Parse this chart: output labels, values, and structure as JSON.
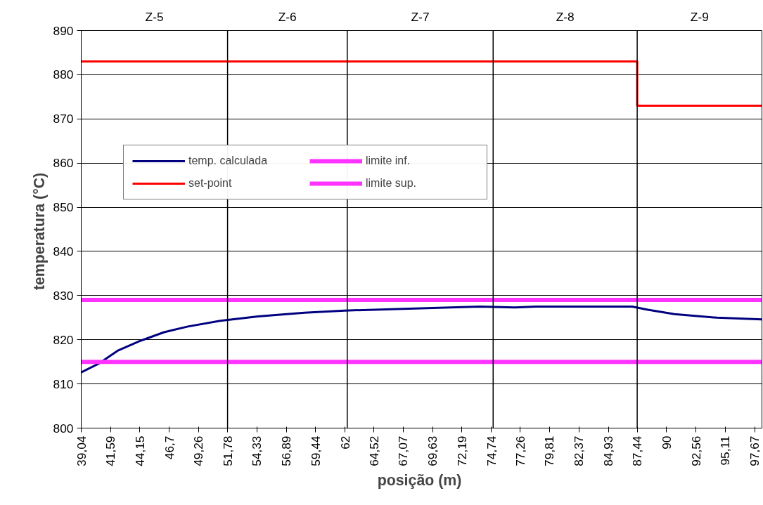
{
  "chart_data": {
    "type": "line",
    "xlabel": "posição  (m)",
    "ylabel": "temperatura  (°C)",
    "xlim": [
      39.04,
      98.3
    ],
    "ylim": [
      800,
      890
    ],
    "xticks": [
      {
        "value": 39.04,
        "label": "39,04"
      },
      {
        "value": 41.59,
        "label": "41,59"
      },
      {
        "value": 44.15,
        "label": "44,15"
      },
      {
        "value": 46.7,
        "label": "46,7"
      },
      {
        "value": 49.26,
        "label": "49,26"
      },
      {
        "value": 51.78,
        "label": "51,78"
      },
      {
        "value": 54.33,
        "label": "54,33"
      },
      {
        "value": 56.89,
        "label": "56,89"
      },
      {
        "value": 59.44,
        "label": "59,44"
      },
      62,
      {
        "value": 64.52,
        "label": "64,52"
      },
      {
        "value": 67.07,
        "label": "67,07"
      },
      {
        "value": 69.63,
        "label": "69,63"
      },
      {
        "value": 72.19,
        "label": "72,19"
      },
      {
        "value": 74.74,
        "label": "74,74"
      },
      {
        "value": 77.26,
        "label": "77,26"
      },
      {
        "value": 79.81,
        "label": "79,81"
      },
      {
        "value": 82.37,
        "label": "82,37"
      },
      {
        "value": 84.93,
        "label": "84,93"
      },
      {
        "value": 87.44,
        "label": "87,44"
      },
      90,
      {
        "value": 92.56,
        "label": "92,56"
      },
      {
        "value": 95.11,
        "label": "95,11"
      },
      {
        "value": 97.67,
        "label": "97,67"
      }
    ],
    "yticks": [
      800,
      810,
      820,
      830,
      840,
      850,
      860,
      870,
      880,
      890
    ],
    "grid": "y",
    "legend": "top left",
    "series": [
      {
        "name": "temp. calculada",
        "color": "#000080",
        "x": [
          39.04,
          40.57,
          42.2,
          44.23,
          46.25,
          48.33,
          51.14,
          54.43,
          58.47,
          61.95,
          67.05,
          73.77,
          76.79,
          78.63,
          87.0,
          88.37,
          90.69,
          94.39,
          98.3
        ],
        "values": [
          812.6,
          814.6,
          817.5,
          819.8,
          821.7,
          823.0,
          824.3,
          825.3,
          826.1,
          826.6,
          827.0,
          827.5,
          827.3,
          827.5,
          827.5,
          826.8,
          825.8,
          825.0,
          824.6
        ]
      },
      {
        "name": "set-point",
        "color": "#ff0000",
        "x": [
          39.04,
          87.44,
          87.44,
          98.3
        ],
        "values": [
          883,
          883,
          873,
          873
        ]
      },
      {
        "name": "limite inf.",
        "color": "#ff33ff",
        "x": [
          39.04,
          98.3
        ],
        "values": [
          815,
          815
        ]
      },
      {
        "name": "limite sup.",
        "color": "#ff33ff",
        "x": [
          39.04,
          98.3
        ],
        "values": [
          829,
          829
        ]
      }
    ],
    "ref_lines": [
      {
        "axis": "x",
        "value": 51.78,
        "color": "#000000"
      },
      {
        "axis": "x",
        "value": 62.2,
        "color": "#000000"
      },
      {
        "axis": "x",
        "value": 74.9,
        "color": "#000000"
      },
      {
        "axis": "x",
        "value": 87.44,
        "color": "#000000"
      }
    ],
    "annotations": [
      "Z-5",
      "Z-6",
      "Z-7",
      "Z-8",
      "Z-9"
    ]
  }
}
